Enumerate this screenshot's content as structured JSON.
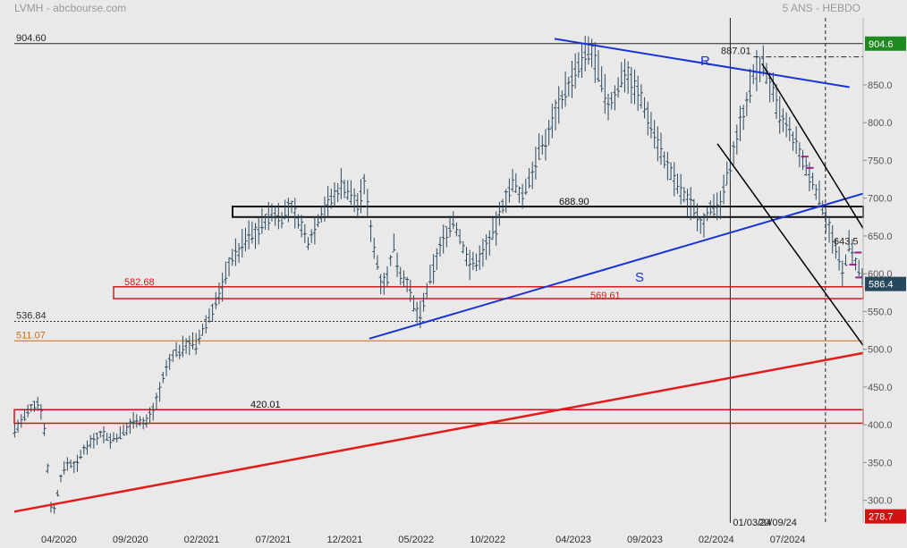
{
  "header": {
    "title": "LVMH - abcbourse.com",
    "period": "5 ANS - HEBDO"
  },
  "chart_data": {
    "type": "line",
    "series_kind": "weekly price bars (OHLC)",
    "ylim": [
      270,
      915
    ],
    "y_ticks": [
      300,
      350,
      400,
      450,
      500,
      550,
      600,
      650,
      700,
      750,
      800,
      850
    ],
    "y_tick_labels": [
      "300.0",
      "350.0",
      "400.0",
      "450.0",
      "500.0",
      "550.0",
      "600.0",
      "650.0",
      "700.0",
      "750.0",
      "800.0",
      "850.0"
    ],
    "x_ticks": [
      {
        "t": 2020.25,
        "label": "04/2020"
      },
      {
        "t": 2020.667,
        "label": "09/2020"
      },
      {
        "t": 2021.083,
        "label": "02/2021"
      },
      {
        "t": 2021.5,
        "label": "07/2021"
      },
      {
        "t": 2021.917,
        "label": "12/2021"
      },
      {
        "t": 2022.333,
        "label": "05/2022"
      },
      {
        "t": 2022.75,
        "label": "10/2022"
      },
      {
        "t": 2023.25,
        "label": "04/2023"
      },
      {
        "t": 2023.667,
        "label": "09/2023"
      },
      {
        "t": 2024.083,
        "label": "02/2024"
      },
      {
        "t": 2024.5,
        "label": "07/2024"
      }
    ],
    "xlim": [
      2019.99,
      2024.94
    ],
    "price_path": [
      [
        2019.99,
        392
      ],
      [
        2020.05,
        410
      ],
      [
        2020.1,
        425
      ],
      [
        2020.14,
        430
      ],
      [
        2020.17,
        385
      ],
      [
        2020.2,
        295
      ],
      [
        2020.22,
        285
      ],
      [
        2020.26,
        330
      ],
      [
        2020.3,
        350
      ],
      [
        2020.35,
        345
      ],
      [
        2020.4,
        370
      ],
      [
        2020.45,
        380
      ],
      [
        2020.5,
        390
      ],
      [
        2020.55,
        380
      ],
      [
        2020.6,
        385
      ],
      [
        2020.65,
        395
      ],
      [
        2020.7,
        410
      ],
      [
        2020.75,
        400
      ],
      [
        2020.8,
        420
      ],
      [
        2020.83,
        440
      ],
      [
        2020.87,
        470
      ],
      [
        2020.92,
        495
      ],
      [
        2020.97,
        500
      ],
      [
        2021.0,
        510
      ],
      [
        2021.05,
        505
      ],
      [
        2021.1,
        530
      ],
      [
        2021.15,
        555
      ],
      [
        2021.2,
        580
      ],
      [
        2021.25,
        620
      ],
      [
        2021.3,
        630
      ],
      [
        2021.35,
        650
      ],
      [
        2021.4,
        655
      ],
      [
        2021.45,
        670
      ],
      [
        2021.5,
        680
      ],
      [
        2021.55,
        675
      ],
      [
        2021.6,
        690
      ],
      [
        2021.65,
        670
      ],
      [
        2021.7,
        640
      ],
      [
        2021.75,
        665
      ],
      [
        2021.8,
        690
      ],
      [
        2021.85,
        700
      ],
      [
        2021.9,
        720
      ],
      [
        2021.95,
        705
      ],
      [
        2022.0,
        690
      ],
      [
        2022.03,
        720
      ],
      [
        2022.07,
        660
      ],
      [
        2022.1,
        620
      ],
      [
        2022.13,
        590
      ],
      [
        2022.17,
        595
      ],
      [
        2022.2,
        640
      ],
      [
        2022.24,
        600
      ],
      [
        2022.28,
        590
      ],
      [
        2022.32,
        555
      ],
      [
        2022.36,
        545
      ],
      [
        2022.4,
        580
      ],
      [
        2022.45,
        620
      ],
      [
        2022.5,
        650
      ],
      [
        2022.55,
        670
      ],
      [
        2022.6,
        640
      ],
      [
        2022.65,
        610
      ],
      [
        2022.7,
        620
      ],
      [
        2022.75,
        640
      ],
      [
        2022.8,
        660
      ],
      [
        2022.85,
        700
      ],
      [
        2022.9,
        720
      ],
      [
        2022.95,
        700
      ],
      [
        2023.0,
        730
      ],
      [
        2023.05,
        760
      ],
      [
        2023.1,
        780
      ],
      [
        2023.15,
        820
      ],
      [
        2023.2,
        840
      ],
      [
        2023.25,
        860
      ],
      [
        2023.3,
        880
      ],
      [
        2023.35,
        895
      ],
      [
        2023.38,
        880
      ],
      [
        2023.42,
        845
      ],
      [
        2023.46,
        820
      ],
      [
        2023.5,
        840
      ],
      [
        2023.55,
        870
      ],
      [
        2023.6,
        850
      ],
      [
        2023.65,
        830
      ],
      [
        2023.7,
        800
      ],
      [
        2023.75,
        770
      ],
      [
        2023.8,
        740
      ],
      [
        2023.85,
        720
      ],
      [
        2023.9,
        700
      ],
      [
        2023.95,
        690
      ],
      [
        2024.0,
        665
      ],
      [
        2024.05,
        690
      ],
      [
        2024.08,
        680
      ],
      [
        2024.12,
        700
      ],
      [
        2024.16,
        740
      ],
      [
        2024.2,
        780
      ],
      [
        2024.25,
        820
      ],
      [
        2024.3,
        860
      ],
      [
        2024.35,
        880
      ],
      [
        2024.4,
        850
      ],
      [
        2024.45,
        810
      ],
      [
        2024.5,
        790
      ],
      [
        2024.55,
        770
      ],
      [
        2024.6,
        740
      ],
      [
        2024.65,
        720
      ],
      [
        2024.7,
        690
      ],
      [
        2024.74,
        665
      ],
      [
        2024.78,
        630
      ],
      [
        2024.82,
        600
      ],
      [
        2024.86,
        640
      ],
      [
        2024.9,
        610
      ],
      [
        2024.94,
        590
      ]
    ],
    "horizontal_levels": [
      {
        "value": 904.6,
        "label": "904.60"
      },
      {
        "value": 536.84,
        "label": "536.84"
      },
      {
        "value": 511.07,
        "label": "511.07"
      }
    ],
    "zones": [
      {
        "label": "688.90",
        "low": 675,
        "high": 688.9
      },
      {
        "label": "582.68",
        "low": 567,
        "high": 582.68
      },
      {
        "label": "420.01",
        "low": 402,
        "high": 420.01
      }
    ],
    "zone_sub_label": "569.61",
    "trendlines": [
      {
        "name": "R",
        "color": "#1a33d6",
        "from": [
          2023.14,
          911
        ],
        "to": [
          2024.86,
          847
        ]
      },
      {
        "name": "S",
        "color": "#1a33d6",
        "from": [
          2022.06,
          514
        ],
        "to": [
          2024.94,
          706
        ]
      },
      {
        "name": "",
        "color": "#e21b1b",
        "from": [
          2019.99,
          285
        ],
        "to": [
          2024.94,
          495
        ]
      },
      {
        "name": "",
        "color": "#000000",
        "from": [
          2024.35,
          878
        ],
        "to": [
          2024.94,
          660
        ]
      },
      {
        "name": "",
        "color": "#000000",
        "from": [
          2024.09,
          772
        ],
        "to": [
          2024.94,
          505
        ]
      }
    ],
    "markers": [
      {
        "label": "887.01",
        "value": 887.01
      },
      {
        "label": "643.5",
        "value": 643.5
      }
    ],
    "date_labels": [
      "01/03/24",
      "20/09/24"
    ],
    "price_tags": [
      {
        "label": "904.6",
        "value": 904.6,
        "color": "#1f8a1f"
      },
      {
        "label": "586.4",
        "value": 586.4,
        "color": "#27485c"
      },
      {
        "label": "278.7",
        "value": 278.7,
        "color": "#d01212"
      }
    ]
  }
}
